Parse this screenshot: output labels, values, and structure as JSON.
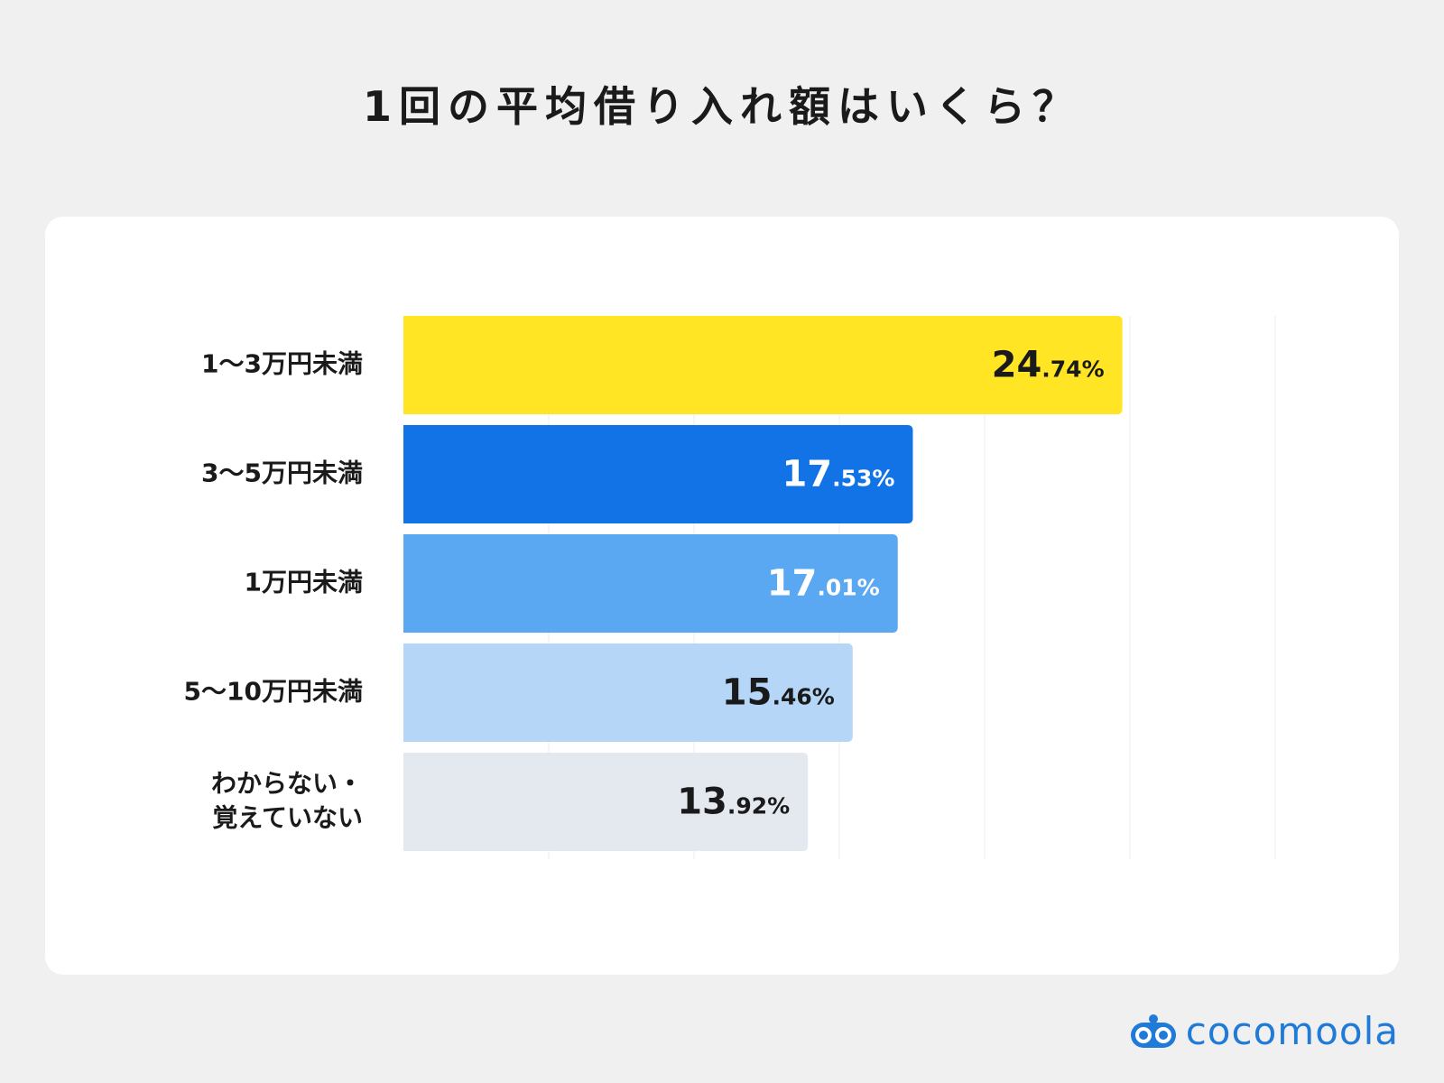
{
  "title": "1回の平均借り入れ額はいくら？",
  "brand": {
    "name": "cocomoola",
    "color": "#1f7ad8"
  },
  "chart_data": {
    "type": "bar",
    "orientation": "horizontal",
    "title": "1回の平均借り入れ額はいくら？",
    "xlabel": "",
    "ylabel": "",
    "xlim": [
      0,
      30
    ],
    "grid": true,
    "categories": [
      "1〜3万円未満",
      "3〜5万円未満",
      "1万円未満",
      "5〜10万円未満",
      "わからない・\n覚えていない"
    ],
    "values": [
      24.74,
      17.53,
      17.01,
      15.46,
      13.92
    ],
    "value_labels": [
      {
        "int": "24",
        "dec": ".74%"
      },
      {
        "int": "17",
        "dec": ".53%"
      },
      {
        "int": "17",
        "dec": ".01%"
      },
      {
        "int": "15",
        "dec": ".46%"
      },
      {
        "int": "13",
        "dec": ".92%"
      }
    ],
    "colors": [
      "#ffe523",
      "#1173e6",
      "#5aa7f2",
      "#b5d6f7",
      "#e4e8ef"
    ],
    "label_colors": [
      "#1a1a1a",
      "#ffffff",
      "#ffffff",
      "#1a1a1a",
      "#1a1a1a"
    ]
  }
}
